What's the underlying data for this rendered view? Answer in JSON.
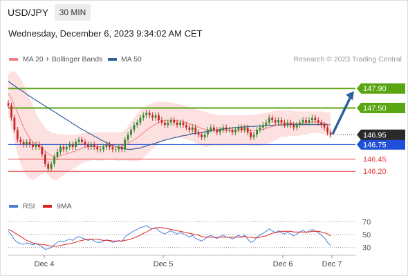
{
  "header": {
    "symbol": "USD/JPY",
    "timeframe": "30 MIN"
  },
  "datetime": "Wednesday, December 6, 2023 9:34:02 AM CET",
  "legend": {
    "ma20": "MA 20 + Bollinger Bands",
    "ma50": "MA 50",
    "rsi": "RSI",
    "rsi_ma": "9MA"
  },
  "credit": "Research © 2023 Trading Central",
  "colors": {
    "ma20": "#f08080",
    "band_fill": "#fde0e0",
    "ma50": "#2d5f99",
    "bull": "#2f8a2f",
    "bear": "#c62828",
    "resistance": "#5aa512",
    "pivot": "#1f4fd8",
    "support": "#e83a3a",
    "current_label_bg": "#2a2a2a",
    "arrow": "#2c5f9e",
    "rsi": "#4a7fd4",
    "rsi_ma": "#e02020"
  },
  "chart_data": [
    {
      "type": "candlestick",
      "title": "USD/JPY",
      "x_tick_labels": [
        "Dec 4",
        "Dec 5",
        "Dec 6",
        "Dec 7"
      ],
      "y_range": [
        145.75,
        148.3
      ],
      "current_price": 146.95,
      "levels": [
        {
          "value": 147.9,
          "label": "147.90",
          "kind": "resistance"
        },
        {
          "value": 147.5,
          "label": "147.50",
          "kind": "resistance"
        },
        {
          "value": 146.75,
          "label": "146.75",
          "kind": "pivot"
        },
        {
          "value": 146.45,
          "label": "146.45",
          "kind": "support"
        },
        {
          "value": 146.2,
          "label": "146.20",
          "kind": "support"
        }
      ],
      "current_label": "146.95",
      "forecast_arrow": {
        "from": 146.95,
        "to": 147.9,
        "direction": "up"
      },
      "close_series": [
        147.55,
        147.3,
        147.05,
        146.85,
        146.8,
        146.75,
        146.8,
        146.75,
        146.7,
        146.75,
        146.7,
        146.55,
        146.35,
        146.25,
        146.35,
        146.5,
        146.6,
        146.7,
        146.65,
        146.7,
        146.75,
        146.7,
        146.8,
        146.85,
        146.8,
        146.75,
        146.7,
        146.75,
        146.7,
        146.65,
        146.65,
        146.7,
        146.75,
        146.7,
        146.65,
        146.65,
        146.7,
        146.65,
        146.85,
        146.95,
        147.05,
        147.15,
        147.2,
        147.3,
        147.35,
        147.4,
        147.35,
        147.3,
        147.35,
        147.25,
        147.2,
        147.15,
        147.2,
        147.25,
        147.2,
        147.15,
        147.2,
        147.15,
        147.1,
        147.05,
        147.1,
        147.0,
        146.95,
        146.9,
        146.95,
        147.05,
        147.1,
        147.05,
        147.0,
        147.05,
        147.1,
        147.05,
        147.05,
        147.0,
        147.05,
        147.1,
        147.05,
        147.1,
        147.0,
        146.9,
        146.95,
        147.05,
        147.1,
        147.15,
        147.2,
        147.3,
        147.25,
        147.2,
        147.25,
        147.2,
        147.15,
        147.2,
        147.15,
        147.1,
        147.15,
        147.2,
        147.25,
        147.2,
        147.25,
        147.3,
        147.25,
        147.2,
        147.15,
        147.1,
        147.0,
        146.95
      ],
      "ma20": [
        147.8,
        147.7,
        147.55,
        147.4,
        147.25,
        147.1,
        146.98,
        146.88,
        146.8,
        146.75,
        146.72,
        146.68,
        146.62,
        146.56,
        146.52,
        146.5,
        146.5,
        146.52,
        146.54,
        146.56,
        146.58,
        146.6,
        146.62,
        146.65,
        146.67,
        146.69,
        146.7,
        146.71,
        146.72,
        146.71,
        146.71,
        146.71,
        146.72,
        146.72,
        146.72,
        146.71,
        146.71,
        146.71,
        146.74,
        146.77,
        146.81,
        146.85,
        146.89,
        146.94,
        146.99,
        147.04,
        147.09,
        147.13,
        147.17,
        147.2,
        147.22,
        147.24,
        147.25,
        147.25,
        147.25,
        147.24,
        147.23,
        147.22,
        147.2,
        147.18,
        147.16,
        147.13,
        147.11,
        147.08,
        147.06,
        147.05,
        147.05,
        147.05,
        147.04,
        147.04,
        147.04,
        147.04,
        147.04,
        147.04,
        147.04,
        147.04,
        147.04,
        147.05,
        147.05,
        147.04,
        147.04,
        147.04,
        147.05,
        147.06,
        147.08,
        147.1,
        147.12,
        147.14,
        147.16,
        147.18,
        147.18,
        147.19,
        147.19,
        147.18,
        147.18,
        147.18,
        147.19,
        147.19,
        147.2,
        147.21,
        147.21,
        147.21,
        147.2,
        147.19,
        147.17,
        147.14
      ],
      "bb_upper": [
        148.2,
        148.25,
        148.25,
        148.2,
        148.1,
        147.98,
        147.85,
        147.7,
        147.55,
        147.4,
        147.28,
        147.18,
        147.1,
        147.04,
        147.0,
        146.98,
        146.97,
        146.96,
        146.96,
        146.95,
        146.95,
        146.95,
        146.96,
        146.97,
        146.98,
        146.99,
        146.99,
        147.0,
        147.0,
        147.0,
        147.0,
        147.0,
        147.0,
        147.0,
        147.0,
        147.0,
        147.0,
        147.0,
        147.05,
        147.12,
        147.22,
        147.3,
        147.38,
        147.45,
        147.5,
        147.55,
        147.58,
        147.6,
        147.62,
        147.63,
        147.63,
        147.63,
        147.62,
        147.61,
        147.6,
        147.59,
        147.58,
        147.56,
        147.54,
        147.52,
        147.5,
        147.48,
        147.46,
        147.44,
        147.42,
        147.4,
        147.38,
        147.37,
        147.36,
        147.35,
        147.35,
        147.35,
        147.35,
        147.35,
        147.35,
        147.35,
        147.35,
        147.35,
        147.36,
        147.36,
        147.36,
        147.37,
        147.38,
        147.39,
        147.4,
        147.42,
        147.43,
        147.44,
        147.45,
        147.45,
        147.46,
        147.46,
        147.45,
        147.44,
        147.43,
        147.43,
        147.43,
        147.43,
        147.43,
        147.43,
        147.43,
        147.43,
        147.43,
        147.42,
        147.41,
        147.4
      ],
      "bb_lower": [
        147.35,
        147.1,
        146.8,
        146.55,
        146.35,
        146.2,
        146.1,
        146.05,
        146.02,
        146.05,
        146.1,
        146.15,
        146.18,
        146.12,
        146.05,
        146.02,
        146.03,
        146.08,
        146.12,
        146.17,
        146.21,
        146.25,
        146.28,
        146.33,
        146.36,
        146.39,
        146.41,
        146.42,
        146.44,
        146.42,
        146.42,
        146.42,
        146.44,
        146.44,
        146.44,
        146.42,
        146.42,
        146.42,
        146.43,
        146.42,
        146.4,
        146.4,
        146.4,
        146.43,
        146.48,
        146.53,
        146.6,
        146.66,
        146.72,
        146.77,
        146.81,
        146.85,
        146.88,
        146.89,
        146.9,
        146.89,
        146.88,
        146.88,
        146.86,
        146.84,
        146.82,
        146.78,
        146.76,
        146.72,
        146.7,
        146.7,
        146.72,
        146.73,
        146.72,
        146.73,
        146.73,
        146.73,
        146.73,
        146.73,
        146.73,
        146.73,
        146.73,
        146.75,
        146.74,
        146.72,
        146.72,
        146.71,
        146.72,
        146.73,
        146.76,
        146.78,
        146.81,
        146.84,
        146.87,
        146.91,
        146.9,
        146.92,
        146.93,
        146.92,
        146.93,
        146.93,
        146.95,
        146.95,
        146.97,
        146.99,
        146.99,
        146.99,
        146.97,
        146.96,
        146.93,
        146.88
      ],
      "ma50": [
        148.05,
        148.0,
        147.96,
        147.91,
        147.87,
        147.83,
        147.78,
        147.74,
        147.7,
        147.66,
        147.62,
        147.58,
        147.54,
        147.5,
        147.46,
        147.42,
        147.38,
        147.34,
        147.3,
        147.26,
        147.22,
        147.18,
        147.14,
        147.1,
        147.06,
        147.03,
        146.99,
        146.96,
        146.92,
        146.89,
        146.85,
        146.82,
        146.79,
        146.76,
        146.73,
        146.71,
        146.69,
        146.67,
        146.66,
        146.65,
        146.65,
        146.66,
        146.67,
        146.68,
        146.7,
        146.72,
        146.74,
        146.76,
        146.78,
        146.8,
        146.82,
        146.84,
        146.86,
        146.87,
        146.89,
        146.9,
        146.92,
        146.93,
        146.94,
        146.96,
        146.97,
        146.98,
        146.99,
        147.0,
        147.01,
        147.02,
        147.03,
        147.04,
        147.05,
        147.06,
        147.07,
        147.08,
        147.08,
        147.09,
        147.1,
        147.1,
        147.11,
        147.11,
        147.12,
        147.12,
        147.12,
        147.13,
        147.13,
        147.13,
        147.14,
        147.14,
        147.14,
        147.15,
        147.15,
        147.15,
        147.15,
        147.15,
        147.16,
        147.16,
        147.16,
        147.16,
        147.16,
        147.16,
        147.16,
        147.16,
        147.16,
        147.16,
        147.16,
        147.16,
        147.16,
        147.15
      ]
    },
    {
      "type": "line",
      "title": "RSI",
      "y_range": [
        20,
        80
      ],
      "y_ticks": [
        70,
        50,
        30
      ],
      "x_tick_labels": [
        "Dec 4",
        "Dec 5",
        "Dec 6",
        "Dec 7"
      ],
      "series": [
        {
          "name": "RSI",
          "values": [
            55,
            50,
            42,
            38,
            36,
            35,
            37,
            36,
            34,
            36,
            34,
            31,
            27,
            28,
            30,
            34,
            38,
            40,
            39,
            41,
            43,
            41,
            45,
            47,
            45,
            43,
            41,
            43,
            40,
            38,
            38,
            40,
            42,
            40,
            38,
            39,
            41,
            39,
            46,
            50,
            53,
            56,
            58,
            61,
            62,
            64,
            61,
            59,
            61,
            56,
            53,
            51,
            54,
            56,
            53,
            51,
            53,
            51,
            49,
            46,
            49,
            44,
            42,
            40,
            43,
            47,
            49,
            46,
            44,
            47,
            49,
            46,
            46,
            43,
            46,
            49,
            46,
            49,
            43,
            38,
            40,
            46,
            49,
            52,
            55,
            59,
            56,
            53,
            56,
            53,
            51,
            54,
            51,
            48,
            51,
            54,
            57,
            53,
            56,
            58,
            56,
            53,
            49,
            45,
            38,
            33
          ]
        },
        {
          "name": "9MA",
          "values": [
            58,
            56,
            53,
            50,
            47,
            44,
            41,
            39,
            37,
            36,
            35,
            35,
            34,
            33,
            32,
            32,
            32,
            33,
            34,
            35,
            36,
            37,
            38,
            40,
            41,
            42,
            43,
            43,
            43,
            43,
            42,
            41,
            41,
            41,
            40,
            40,
            40,
            40,
            41,
            42,
            43,
            45,
            47,
            49,
            52,
            54,
            57,
            59,
            60,
            61,
            61,
            60,
            59,
            58,
            57,
            56,
            55,
            54,
            53,
            52,
            51,
            50,
            49,
            47,
            46,
            46,
            46,
            46,
            46,
            46,
            46,
            46,
            46,
            46,
            46,
            46,
            46,
            47,
            46,
            46,
            45,
            45,
            46,
            47,
            48,
            50,
            52,
            53,
            54,
            55,
            55,
            55,
            55,
            54,
            54,
            54,
            54,
            54,
            54,
            55,
            55,
            55,
            54,
            53,
            51,
            48
          ]
        }
      ]
    }
  ]
}
